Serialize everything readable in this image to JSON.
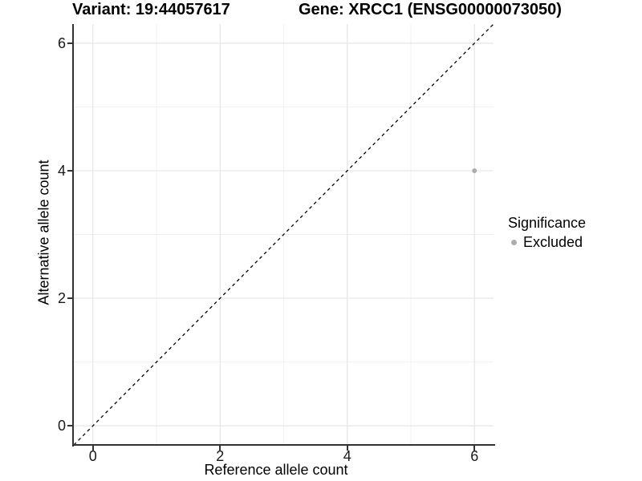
{
  "chart_data": {
    "type": "scatter",
    "title_left": "Variant: 19:44057617",
    "title_right": "Gene: XRCC1 (ENSG00000073050)",
    "xlabel": "Reference allele count",
    "ylabel": "Alternative allele count",
    "xlim": [
      -0.3,
      6.3
    ],
    "ylim": [
      -0.3,
      6.3
    ],
    "xticks": [
      0,
      2,
      4,
      6
    ],
    "yticks": [
      0,
      2,
      4,
      6
    ],
    "x_minor_gridlines": [
      1,
      3,
      5
    ],
    "y_minor_gridlines": [
      1,
      3,
      5
    ],
    "grid": "major and minor, light gray on white",
    "reference_line": {
      "style": "dashed",
      "x1": -0.3,
      "y1": -0.3,
      "x2": 6.3,
      "y2": 6.3
    },
    "series": [
      {
        "name": "Excluded",
        "points": [
          {
            "x": 6,
            "y": 4
          }
        ]
      }
    ],
    "legend": {
      "position": "right",
      "title": "Significance",
      "entries": [
        {
          "label": "Excluded",
          "color": "#adadad"
        }
      ]
    }
  },
  "colors": {
    "background": "#ffffff",
    "grid_major": "#e5e5e5",
    "grid_minor": "#f0f0f0",
    "axis_line": "#333333",
    "tick_mark": "#333333",
    "tick_text": "#1a1a1a",
    "title_text": "#000000",
    "point": "#adadad",
    "reference_line": "#000000"
  }
}
